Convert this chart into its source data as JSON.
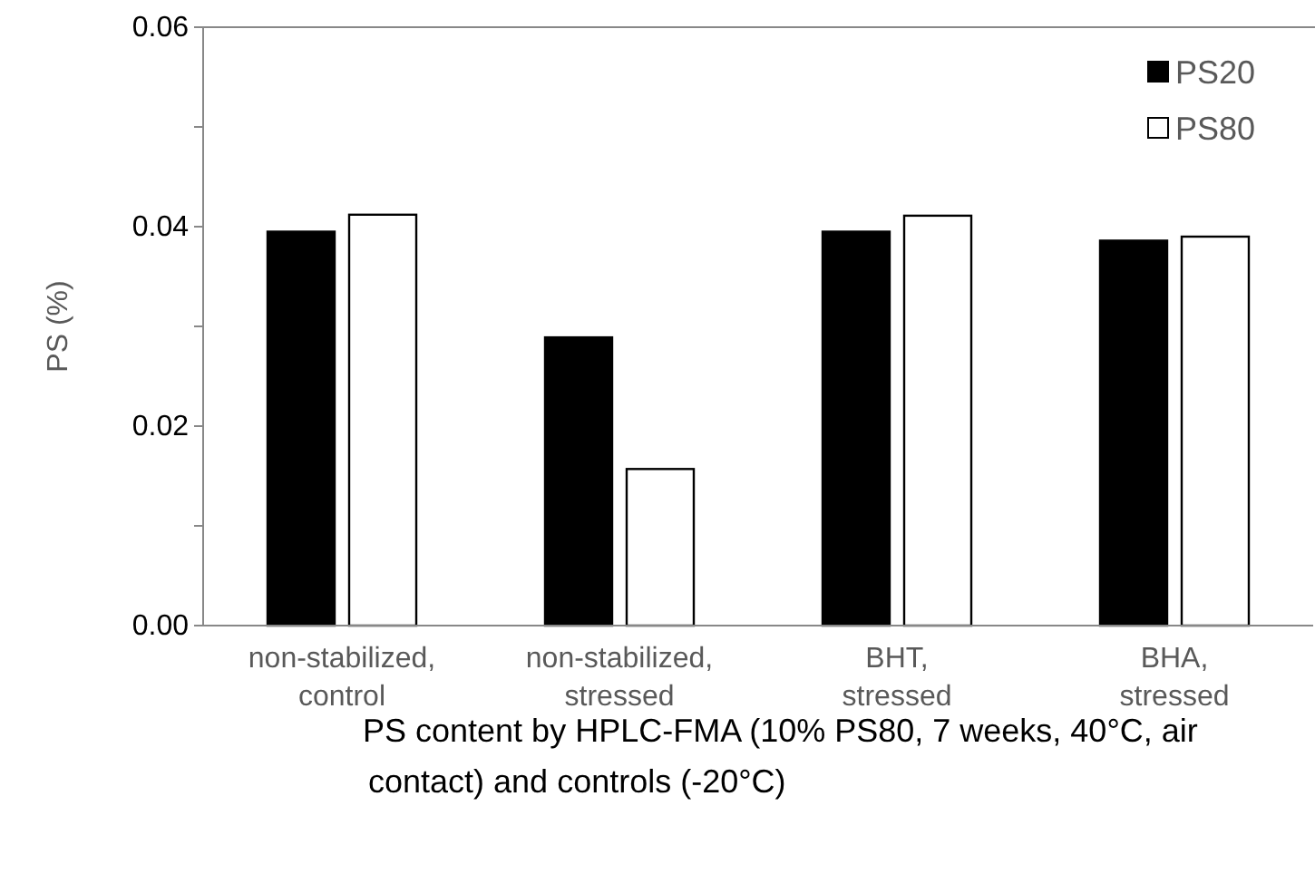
{
  "chart_data": {
    "type": "bar",
    "ylabel": "PS (%)",
    "categories": [
      "non-stabilized, control",
      "non-stabilized, stressed",
      "BHT, stressed",
      "BHA, stressed"
    ],
    "series": [
      {
        "name": "PS20",
        "color": "#000000",
        "values": [
          0.0395,
          0.0289,
          0.0395,
          0.0386
        ]
      },
      {
        "name": "PS80",
        "color": "#ffffff",
        "values": [
          0.0412,
          0.0157,
          0.0411,
          0.039
        ]
      }
    ],
    "ylim": [
      0,
      0.06
    ],
    "yticks": [
      {
        "value": 0,
        "label": "0.00"
      },
      {
        "value": 0.01,
        "label": null
      },
      {
        "value": 0.02,
        "label": "0.02"
      },
      {
        "value": 0.03,
        "label": null
      },
      {
        "value": 0.04,
        "label": "0.04"
      },
      {
        "value": 0.05,
        "label": null
      },
      {
        "value": 0.06,
        "label": "0.06"
      }
    ],
    "grid": false,
    "legend": "top right",
    "annotations": [
      "PS content by HPLC-FMA (10% PS80, 7 weeks, 40°C, air contact) and controls (-20°C)"
    ]
  }
}
